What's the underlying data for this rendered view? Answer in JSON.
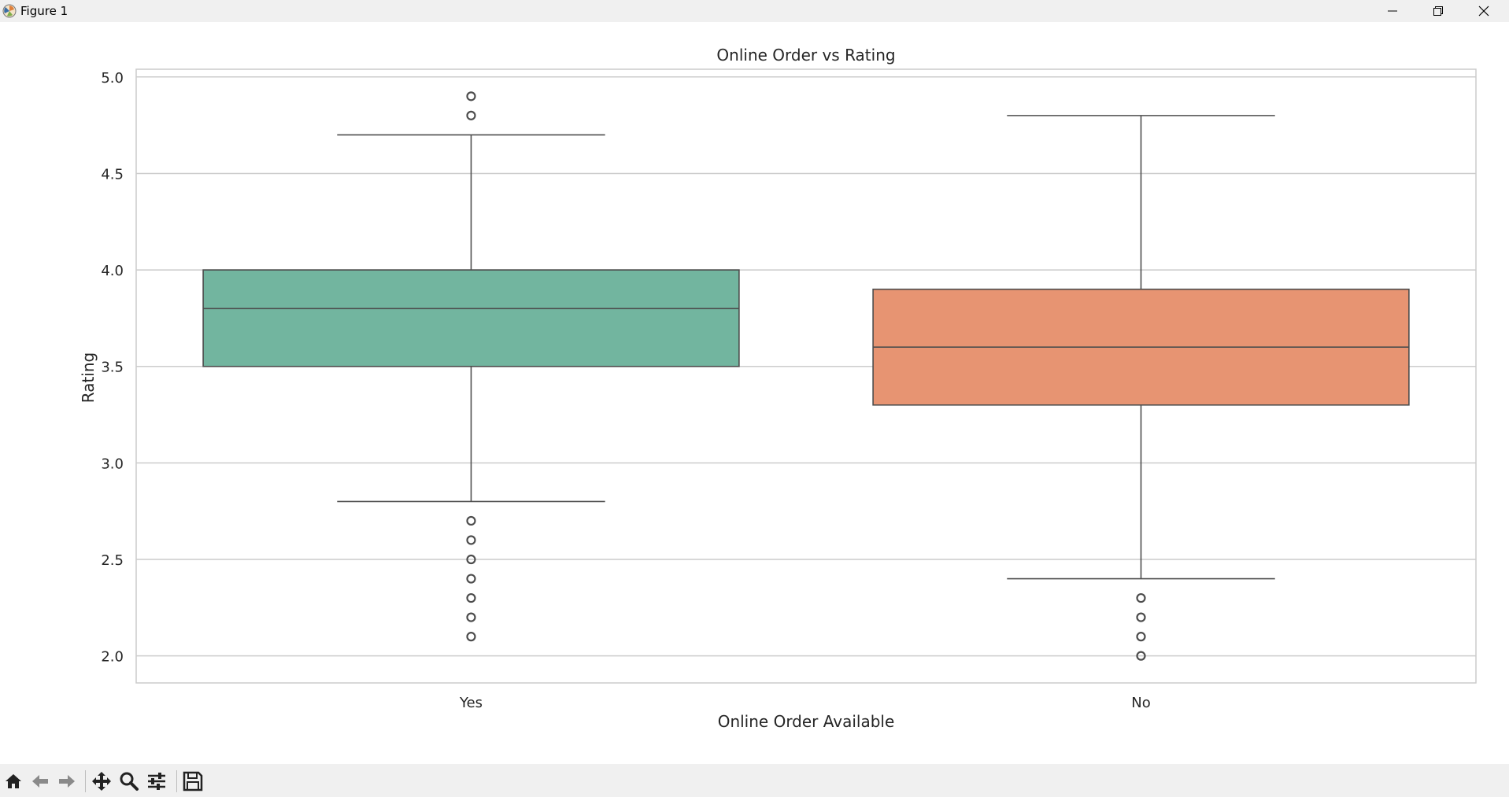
{
  "window": {
    "title": "Figure 1",
    "app_icon": "matplotlib-icon",
    "controls": [
      "minimize-icon",
      "maximize-icon",
      "close-icon"
    ]
  },
  "toolbar": {
    "buttons": [
      {
        "name": "home-button",
        "icon": "home-icon"
      },
      {
        "name": "back-button",
        "icon": "arrow-left-icon"
      },
      {
        "name": "forward-button",
        "icon": "arrow-right-icon"
      },
      {
        "name": "pan-button",
        "icon": "move-icon"
      },
      {
        "name": "zoom-button",
        "icon": "magnifier-icon"
      },
      {
        "name": "configure-subplots-button",
        "icon": "sliders-icon"
      },
      {
        "name": "save-button",
        "icon": "floppy-disk-icon"
      }
    ]
  },
  "chart_data": {
    "type": "box",
    "title": "Online Order vs Rating",
    "xlabel": "Online Order Available",
    "ylabel": "Rating",
    "ylim": [
      1.86,
      5.04
    ],
    "yticks": [
      "2.0",
      "2.5",
      "3.0",
      "3.5",
      "4.0",
      "4.5",
      "5.0"
    ],
    "grid": true,
    "categories": [
      "Yes",
      "No"
    ],
    "boxes": [
      {
        "category": "Yes",
        "color": "#72b59f",
        "whisker_low": 2.8,
        "q1": 3.5,
        "median": 3.8,
        "q3": 4.0,
        "whisker_high": 4.7,
        "outliers": [
          4.9,
          4.8,
          2.7,
          2.6,
          2.5,
          2.4,
          2.3,
          2.2,
          2.1
        ]
      },
      {
        "category": "No",
        "color": "#e79472",
        "whisker_low": 2.4,
        "q1": 3.3,
        "median": 3.6,
        "q3": 3.9,
        "whisker_high": 4.8,
        "outliers": [
          2.3,
          2.2,
          2.1,
          2.0
        ]
      }
    ]
  }
}
